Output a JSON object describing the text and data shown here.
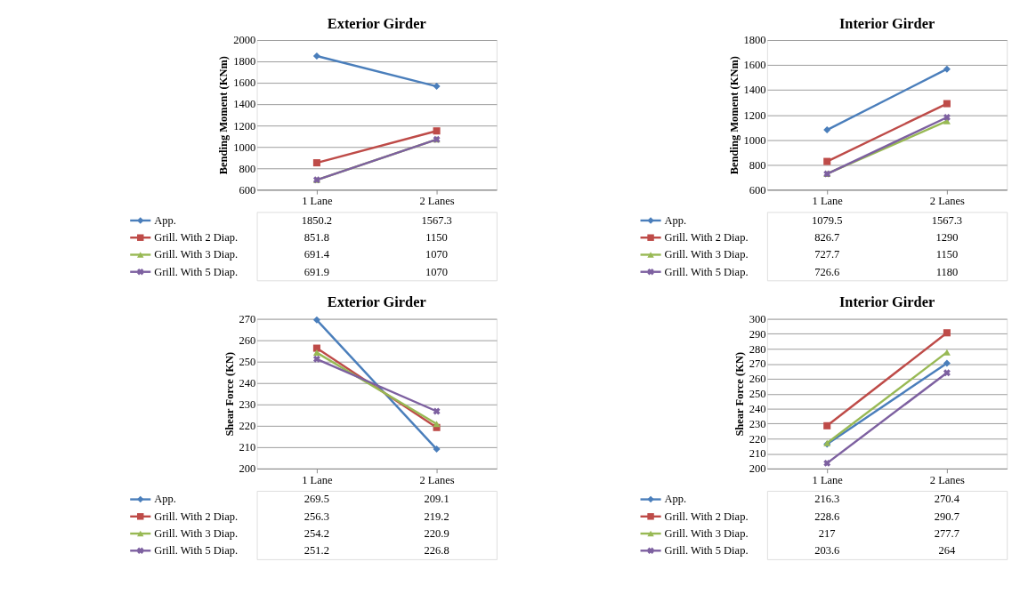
{
  "chart_data": [
    {
      "type": "line",
      "title": "Exterior Girder",
      "ylabel": "Bending Moment (KNm)",
      "categories": [
        "1 Lane",
        "2 Lanes"
      ],
      "ylim": [
        600,
        2000
      ],
      "yticks": [
        600,
        800,
        1000,
        1200,
        1400,
        1600,
        1800,
        2000
      ],
      "grid": "y",
      "legend": "bottom",
      "data_labels": true,
      "series": [
        {
          "name": "App.",
          "color": "#4a7ebb",
          "marker": "diamond",
          "values": [
            1850.2,
            1567.3
          ]
        },
        {
          "name": "Grill. With 2 Diap.",
          "color": "#be4b48",
          "marker": "square",
          "values": [
            851.8,
            1150
          ]
        },
        {
          "name": "Grill. With 3 Diap.",
          "color": "#98b954",
          "marker": "triangle",
          "values": [
            691.4,
            1070
          ]
        },
        {
          "name": "Grill. With 5 Diap.",
          "color": "#7d60a0",
          "marker": "cross",
          "values": [
            691.9,
            1070
          ]
        }
      ]
    },
    {
      "type": "line",
      "title": "Interior Girder",
      "ylabel": "Bending Moment (KNm)",
      "categories": [
        "1 Lane",
        "2 Lanes"
      ],
      "ylim": [
        600,
        1800
      ],
      "yticks": [
        600,
        800,
        1000,
        1200,
        1400,
        1600,
        1800
      ],
      "grid": "y",
      "legend": "bottom",
      "data_labels": true,
      "series": [
        {
          "name": "App.",
          "color": "#4a7ebb",
          "marker": "diamond",
          "values": [
            1079.5,
            1567.3
          ]
        },
        {
          "name": "Grill. With 2 Diap.",
          "color": "#be4b48",
          "marker": "square",
          "values": [
            826.7,
            1290
          ]
        },
        {
          "name": "Grill. With 3 Diap.",
          "color": "#98b954",
          "marker": "triangle",
          "values": [
            727.7,
            1150
          ]
        },
        {
          "name": "Grill. With 5 Diap.",
          "color": "#7d60a0",
          "marker": "cross",
          "values": [
            726.6,
            1180
          ]
        }
      ]
    },
    {
      "type": "line",
      "title": "Exterior Girder",
      "ylabel": "Shear Force (KN)",
      "categories": [
        "1 Lane",
        "2 Lanes"
      ],
      "ylim": [
        200,
        270
      ],
      "yticks": [
        200,
        210,
        220,
        230,
        240,
        250,
        260,
        270
      ],
      "grid": "y",
      "legend": "bottom",
      "data_labels": true,
      "series": [
        {
          "name": "App.",
          "color": "#4a7ebb",
          "marker": "diamond",
          "values": [
            269.5,
            209.1
          ]
        },
        {
          "name": "Grill. With 2 Diap.",
          "color": "#be4b48",
          "marker": "square",
          "values": [
            256.3,
            219.2
          ]
        },
        {
          "name": "Grill. With 3 Diap.",
          "color": "#98b954",
          "marker": "triangle",
          "values": [
            254.2,
            220.9
          ]
        },
        {
          "name": "Grill. With 5 Diap.",
          "color": "#7d60a0",
          "marker": "cross",
          "values": [
            251.2,
            226.8
          ]
        }
      ]
    },
    {
      "type": "line",
      "title": "Interior Girder",
      "ylabel": "Shear Force (KN)",
      "categories": [
        "1 Lane",
        "2 Lanes"
      ],
      "ylim": [
        200,
        300
      ],
      "yticks": [
        200,
        210,
        220,
        230,
        240,
        250,
        260,
        270,
        280,
        290,
        300
      ],
      "grid": "y",
      "legend": "bottom",
      "data_labels": true,
      "series": [
        {
          "name": "App.",
          "color": "#4a7ebb",
          "marker": "diamond",
          "values": [
            216.3,
            270.4
          ]
        },
        {
          "name": "Grill. With 2 Diap.",
          "color": "#be4b48",
          "marker": "square",
          "values": [
            228.6,
            290.7
          ]
        },
        {
          "name": "Grill. With 3 Diap.",
          "color": "#98b954",
          "marker": "triangle",
          "values": [
            217,
            277.7
          ]
        },
        {
          "name": "Grill. With 5 Diap.",
          "color": "#7d60a0",
          "marker": "cross",
          "values": [
            203.6,
            264
          ]
        }
      ]
    }
  ]
}
